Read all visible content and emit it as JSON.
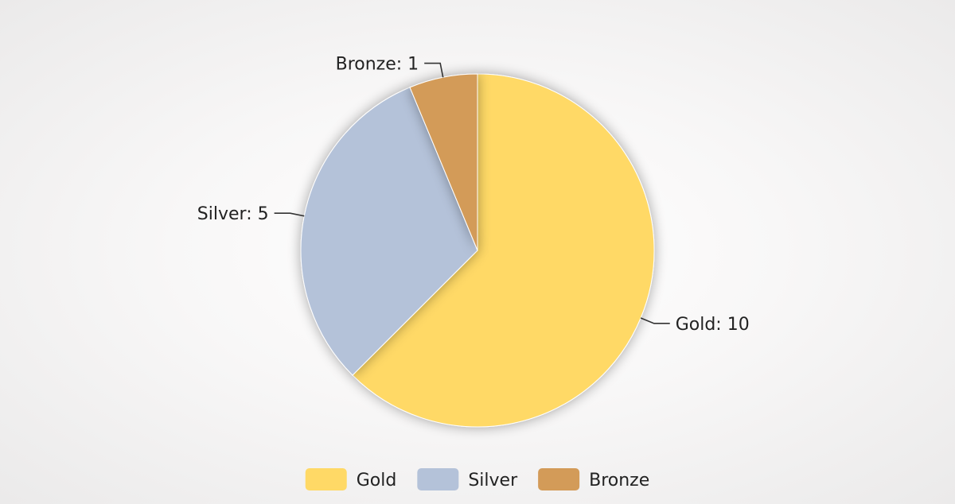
{
  "chart_data": {
    "type": "pie",
    "title": "",
    "slices": [
      {
        "name": "Gold",
        "value": 10,
        "color": "#FFD966",
        "label": "Gold: 10"
      },
      {
        "name": "Silver",
        "value": 5,
        "color": "#B4C2D9",
        "label": "Silver: 5"
      },
      {
        "name": "Bronze",
        "value": 1,
        "color": "#D39B58",
        "label": "Bronze: 1"
      }
    ],
    "start_angle_deg": 0,
    "direction": "clockwise",
    "legend": {
      "position": "bottom-center",
      "items": [
        "Gold",
        "Silver",
        "Bronze"
      ]
    }
  }
}
